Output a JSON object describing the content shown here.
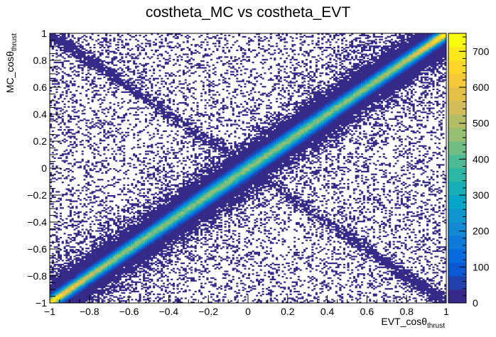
{
  "chart_data": {
    "type": "heatmap",
    "title": "costheta_MC vs costheta_EVT",
    "xlabel": "EVT_cosθ",
    "xlabel_sub": "thrust",
    "ylabel": "MC_cosθ",
    "ylabel_sub": "thrust",
    "xlim": [
      -1,
      1
    ],
    "ylim": [
      -1,
      1
    ],
    "zlim": [
      0,
      750
    ],
    "x_ticks": [
      -1,
      -0.8,
      -0.6,
      -0.4,
      -0.2,
      0,
      0.2,
      0.4,
      0.6,
      0.8,
      1
    ],
    "x_tick_labels": [
      "−1",
      "−0.8",
      "−0.6",
      "−0.4",
      "−0.2",
      "0",
      "0.2",
      "0.4",
      "0.6",
      "0.8",
      "1"
    ],
    "y_ticks": [
      -1,
      -0.8,
      -0.6,
      -0.4,
      -0.2,
      0,
      0.2,
      0.4,
      0.6,
      0.8,
      1
    ],
    "y_tick_labels": [
      "−1",
      "−0.8",
      "−0.6",
      "−0.4",
      "−0.2",
      "0",
      "0.2",
      "0.4",
      "0.6",
      "0.8",
      "1"
    ],
    "z_ticks": [
      0,
      100,
      200,
      300,
      400,
      500,
      600,
      700
    ],
    "z_tick_labels": [
      "0",
      "100",
      "200",
      "300",
      "400",
      "500",
      "600",
      "700"
    ],
    "bins": [
      200,
      200
    ],
    "palette": "kBird",
    "colors": [
      "#352a87",
      "#0363e1",
      "#1485d4",
      "#06a7c6",
      "#38b99e",
      "#92bf73",
      "#d9ba56",
      "#fcce2e",
      "#f9fb0e"
    ],
    "structure": {
      "main_diagonal": "y = x, peak count ~750 near x = ±1, ~450 near x = 0",
      "anti_diagonal": "y = −x, sparse (count ~1–5), strongest near |x| > 0.6",
      "background": "sparse scattered entries (count 1–2)"
    }
  }
}
